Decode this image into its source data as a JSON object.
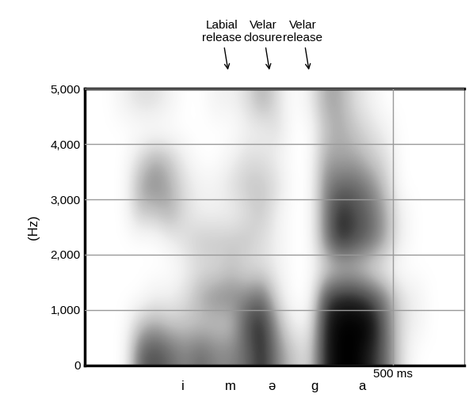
{
  "chart_data": {
    "type": "spectrogram",
    "y_label": "(Hz)",
    "xlim": [
      0,
      615
    ],
    "ylim": [
      0,
      5000
    ],
    "xticks": [
      {
        "value": 500,
        "label": "500 ms"
      }
    ],
    "yticks": [
      {
        "value": 0,
        "label": "0"
      },
      {
        "value": 1000,
        "label": "1,000"
      },
      {
        "value": 2000,
        "label": "2,000"
      },
      {
        "value": 3000,
        "label": "3,000"
      },
      {
        "value": 4000,
        "label": "4,000"
      },
      {
        "value": 5000,
        "label": "5,000"
      }
    ],
    "grid": true,
    "tick_labels": "y",
    "time_bins": [
      0,
      25,
      50,
      75,
      100,
      125,
      150,
      175,
      200,
      225,
      250,
      275,
      300,
      325,
      350,
      375,
      400,
      425,
      450,
      475,
      500,
      525,
      550,
      575,
      600,
      625
    ],
    "freq_bins": [
      0,
      500,
      1000,
      1500,
      2000,
      2500,
      3000,
      3500,
      4000,
      4500,
      5000
    ],
    "cells": [
      [
        0,
        0,
        0,
        0,
        0,
        0,
        0,
        0,
        0,
        0
      ],
      [
        0,
        0,
        0,
        0,
        0,
        0,
        0,
        0,
        0,
        0
      ],
      [
        0,
        0,
        0,
        0,
        0,
        0,
        0,
        0,
        0,
        1
      ],
      [
        6,
        3,
        0,
        0,
        0,
        3,
        4,
        2,
        0,
        2
      ],
      [
        7,
        4,
        1,
        0,
        0,
        3,
        5,
        4,
        0,
        2
      ],
      [
        6,
        3,
        1,
        0,
        1,
        4,
        4,
        3,
        0,
        1
      ],
      [
        5,
        3,
        2,
        1,
        2,
        2,
        2,
        1,
        0,
        0
      ],
      [
        6,
        3,
        4,
        2,
        3,
        1,
        1,
        0,
        0,
        0
      ],
      [
        5,
        3,
        5,
        2,
        3,
        1,
        1,
        0,
        0,
        1
      ],
      [
        5,
        3,
        5,
        3,
        3,
        1,
        2,
        1,
        0,
        1
      ],
      [
        6,
        7,
        5,
        2,
        3,
        2,
        3,
        2,
        1,
        2
      ],
      [
        8,
        8,
        6,
        2,
        2,
        3,
        3,
        2,
        1,
        4
      ],
      [
        5,
        4,
        2,
        1,
        1,
        1,
        2,
        1,
        2,
        2
      ],
      [
        3,
        1,
        0,
        0,
        0,
        0,
        0,
        0,
        0,
        0
      ],
      [
        2,
        1,
        0,
        0,
        0,
        0,
        0,
        0,
        0,
        1
      ],
      [
        8,
        8,
        7,
        2,
        5,
        5,
        5,
        4,
        3,
        4
      ],
      [
        9,
        9,
        8,
        3,
        8,
        8,
        6,
        4,
        4,
        4
      ],
      [
        9,
        9,
        8,
        3,
        7,
        7,
        6,
        4,
        3,
        2
      ],
      [
        8,
        9,
        7,
        2,
        6,
        6,
        5,
        3,
        2,
        1
      ],
      [
        6,
        6,
        5,
        1,
        4,
        4,
        3,
        2,
        1,
        0
      ],
      [
        2,
        2,
        2,
        0,
        1,
        1,
        0,
        0,
        0,
        0
      ],
      [
        0,
        1,
        1,
        0,
        0,
        0,
        0,
        0,
        0,
        0
      ],
      [
        0,
        0,
        0,
        0,
        0,
        0,
        0,
        0,
        0,
        0
      ],
      [
        0,
        0,
        0,
        0,
        0,
        0,
        0,
        0,
        0,
        0
      ],
      [
        0,
        0,
        0,
        0,
        0,
        0,
        0,
        0,
        0,
        0
      ]
    ],
    "segments": [
      {
        "label": "i",
        "time": 159
      },
      {
        "label": "m",
        "time": 237
      },
      {
        "label": "ə",
        "time": 303
      },
      {
        "label": "g",
        "time": 373
      },
      {
        "label": "a",
        "time": 449
      }
    ],
    "annotations": [
      {
        "text": "Labial release",
        "time": 233
      },
      {
        "text": "Velar closure",
        "time": 300
      },
      {
        "text": "Velar release",
        "time": 364
      }
    ]
  }
}
